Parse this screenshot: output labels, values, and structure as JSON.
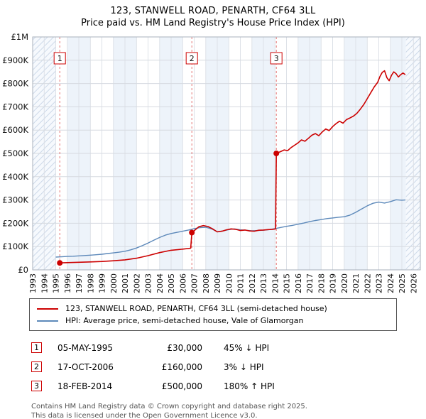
{
  "title": "123, STANWELL ROAD, PENARTH, CF64 3LL",
  "subtitle": "Price paid vs. HM Land Registry's House Price Index (HPI)",
  "chart_data": {
    "type": "line",
    "title": "123, STANWELL ROAD, PENARTH, CF64 3LL — Price paid vs. HPI",
    "x_domain": [
      1993,
      2026.6
    ],
    "y_domain": [
      0,
      1000000
    ],
    "x_ticks": [
      1993,
      1994,
      1995,
      1996,
      1997,
      1998,
      1999,
      2000,
      2001,
      2002,
      2003,
      2004,
      2005,
      2006,
      2007,
      2008,
      2009,
      2010,
      2011,
      2012,
      2013,
      2014,
      2015,
      2016,
      2017,
      2018,
      2019,
      2020,
      2021,
      2022,
      2023,
      2024,
      2025,
      2026
    ],
    "y_ticks": [
      {
        "label": "£0",
        "value": 0
      },
      {
        "label": "£100K",
        "value": 100000
      },
      {
        "label": "£200K",
        "value": 200000
      },
      {
        "label": "£300K",
        "value": 300000
      },
      {
        "label": "£400K",
        "value": 400000
      },
      {
        "label": "£500K",
        "value": 500000
      },
      {
        "label": "£600K",
        "value": 600000
      },
      {
        "label": "£700K",
        "value": 700000
      },
      {
        "label": "£800K",
        "value": 800000
      },
      {
        "label": "£900K",
        "value": 900000
      },
      {
        "label": "£1M",
        "value": 1000000
      }
    ],
    "grid": true,
    "legend_position": "bottom",
    "hatch_regions": [
      [
        1993,
        1995
      ],
      [
        2025.35,
        2026.6
      ]
    ],
    "band_regions": [
      [
        1996,
        1998
      ],
      [
        2000,
        2002
      ],
      [
        2004,
        2006
      ],
      [
        2008,
        2010
      ],
      [
        2012,
        2014
      ],
      [
        2016,
        2018
      ],
      [
        2020,
        2022
      ],
      [
        2024,
        2025.35
      ]
    ],
    "sales": [
      {
        "num": "1",
        "date": "05-MAY-1995",
        "x": 1995.35,
        "price": 30000,
        "price_label": "£30,000",
        "hpi_label": "45% ↓ HPI"
      },
      {
        "num": "2",
        "date": "17-OCT-2006",
        "x": 2006.8,
        "price": 160000,
        "price_label": "£160,000",
        "hpi_label": "3% ↓ HPI"
      },
      {
        "num": "3",
        "date": "18-FEB-2014",
        "x": 2014.12,
        "price": 500000,
        "price_label": "£500,000",
        "hpi_label": "180% ↑ HPI"
      }
    ],
    "series": [
      {
        "name": "123, STANWELL ROAD, PENARTH, CF64 3LL (semi-detached house)",
        "color": "#cc0000",
        "width": 1.6,
        "points": [
          [
            1995.35,
            30000
          ],
          [
            1996,
            31000
          ],
          [
            1997,
            32500
          ],
          [
            1998,
            34000
          ],
          [
            1999,
            36000
          ],
          [
            2000,
            39000
          ],
          [
            2001,
            43000
          ],
          [
            2002,
            50000
          ],
          [
            2003,
            61000
          ],
          [
            2004,
            74000
          ],
          [
            2005,
            84000
          ],
          [
            2006,
            89000
          ],
          [
            2006.7,
            93000
          ],
          [
            2006.8,
            160000
          ],
          [
            2007,
            168000
          ],
          [
            2007.4,
            185000
          ],
          [
            2007.8,
            190000
          ],
          [
            2008.2,
            186000
          ],
          [
            2008.6,
            176000
          ],
          [
            2009,
            163000
          ],
          [
            2009.4,
            166000
          ],
          [
            2009.8,
            172000
          ],
          [
            2010.2,
            176000
          ],
          [
            2010.6,
            174000
          ],
          [
            2011,
            169000
          ],
          [
            2011.4,
            171000
          ],
          [
            2011.8,
            167000
          ],
          [
            2012.2,
            166000
          ],
          [
            2012.6,
            170000
          ],
          [
            2013,
            171000
          ],
          [
            2013.4,
            173000
          ],
          [
            2013.8,
            174000
          ],
          [
            2014.05,
            176000
          ],
          [
            2014.12,
            500000
          ],
          [
            2014.5,
            508000
          ],
          [
            2014.8,
            515000
          ],
          [
            2015.1,
            512000
          ],
          [
            2015.4,
            525000
          ],
          [
            2015.7,
            535000
          ],
          [
            2016,
            545000
          ],
          [
            2016.3,
            558000
          ],
          [
            2016.6,
            552000
          ],
          [
            2016.9,
            565000
          ],
          [
            2017.2,
            578000
          ],
          [
            2017.5,
            585000
          ],
          [
            2017.8,
            576000
          ],
          [
            2018.1,
            592000
          ],
          [
            2018.4,
            605000
          ],
          [
            2018.7,
            598000
          ],
          [
            2019,
            615000
          ],
          [
            2019.3,
            628000
          ],
          [
            2019.6,
            638000
          ],
          [
            2019.9,
            630000
          ],
          [
            2020.2,
            645000
          ],
          [
            2020.5,
            652000
          ],
          [
            2020.8,
            660000
          ],
          [
            2021.1,
            672000
          ],
          [
            2021.4,
            690000
          ],
          [
            2021.7,
            710000
          ],
          [
            2022,
            735000
          ],
          [
            2022.3,
            760000
          ],
          [
            2022.6,
            785000
          ],
          [
            2022.9,
            805000
          ],
          [
            2023.1,
            830000
          ],
          [
            2023.3,
            848000
          ],
          [
            2023.5,
            855000
          ],
          [
            2023.7,
            825000
          ],
          [
            2023.9,
            812000
          ],
          [
            2024.1,
            835000
          ],
          [
            2024.3,
            850000
          ],
          [
            2024.5,
            842000
          ],
          [
            2024.7,
            828000
          ],
          [
            2024.9,
            838000
          ],
          [
            2025.1,
            845000
          ],
          [
            2025.3,
            838000
          ]
        ]
      },
      {
        "name": "HPI: Average price, semi-detached house, Vale of Glamorgan",
        "color": "#5d89ba",
        "width": 1.4,
        "points": [
          [
            1995,
            55000
          ],
          [
            1995.5,
            56000
          ],
          [
            1996,
            57500
          ],
          [
            1996.5,
            58500
          ],
          [
            1997,
            60000
          ],
          [
            1997.5,
            61500
          ],
          [
            1998,
            63000
          ],
          [
            1998.5,
            65000
          ],
          [
            1999,
            67000
          ],
          [
            1999.5,
            70000
          ],
          [
            2000,
            73000
          ],
          [
            2000.5,
            76000
          ],
          [
            2001,
            80000
          ],
          [
            2001.5,
            86000
          ],
          [
            2002,
            94000
          ],
          [
            2002.5,
            104000
          ],
          [
            2003,
            115000
          ],
          [
            2003.5,
            127000
          ],
          [
            2004,
            139000
          ],
          [
            2004.5,
            149000
          ],
          [
            2005,
            156000
          ],
          [
            2005.5,
            161000
          ],
          [
            2006,
            166000
          ],
          [
            2006.5,
            171000
          ],
          [
            2007,
            177000
          ],
          [
            2007.5,
            181000
          ],
          [
            2008,
            183000
          ],
          [
            2008.5,
            176000
          ],
          [
            2009,
            164000
          ],
          [
            2009.5,
            167000
          ],
          [
            2010,
            173000
          ],
          [
            2010.5,
            176000
          ],
          [
            2011,
            172000
          ],
          [
            2011.5,
            170000
          ],
          [
            2012,
            168000
          ],
          [
            2012.5,
            169000
          ],
          [
            2013,
            170000
          ],
          [
            2013.5,
            173000
          ],
          [
            2014,
            177000
          ],
          [
            2014.5,
            182000
          ],
          [
            2015,
            187000
          ],
          [
            2015.5,
            191000
          ],
          [
            2016,
            196000
          ],
          [
            2016.5,
            201000
          ],
          [
            2017,
            207000
          ],
          [
            2017.5,
            212000
          ],
          [
            2018,
            216000
          ],
          [
            2018.5,
            220000
          ],
          [
            2019,
            223000
          ],
          [
            2019.5,
            226000
          ],
          [
            2020,
            228000
          ],
          [
            2020.5,
            235000
          ],
          [
            2021,
            247000
          ],
          [
            2021.5,
            261000
          ],
          [
            2022,
            275000
          ],
          [
            2022.5,
            286000
          ],
          [
            2023,
            291000
          ],
          [
            2023.5,
            287000
          ],
          [
            2024,
            293000
          ],
          [
            2024.5,
            301000
          ],
          [
            2025,
            299000
          ],
          [
            2025.3,
            300000
          ]
        ]
      }
    ]
  },
  "legend": {
    "items": [
      {
        "label": "123, STANWELL ROAD, PENARTH, CF64 3LL (semi-detached house)",
        "color": "#cc0000"
      },
      {
        "label": "HPI: Average price, semi-detached house, Vale of Glamorgan",
        "color": "#5d89ba"
      }
    ]
  },
  "footer": {
    "line1": "Contains HM Land Registry data © Crown copyright and database right 2025.",
    "line2": "This data is licensed under the Open Government Licence v3.0."
  }
}
